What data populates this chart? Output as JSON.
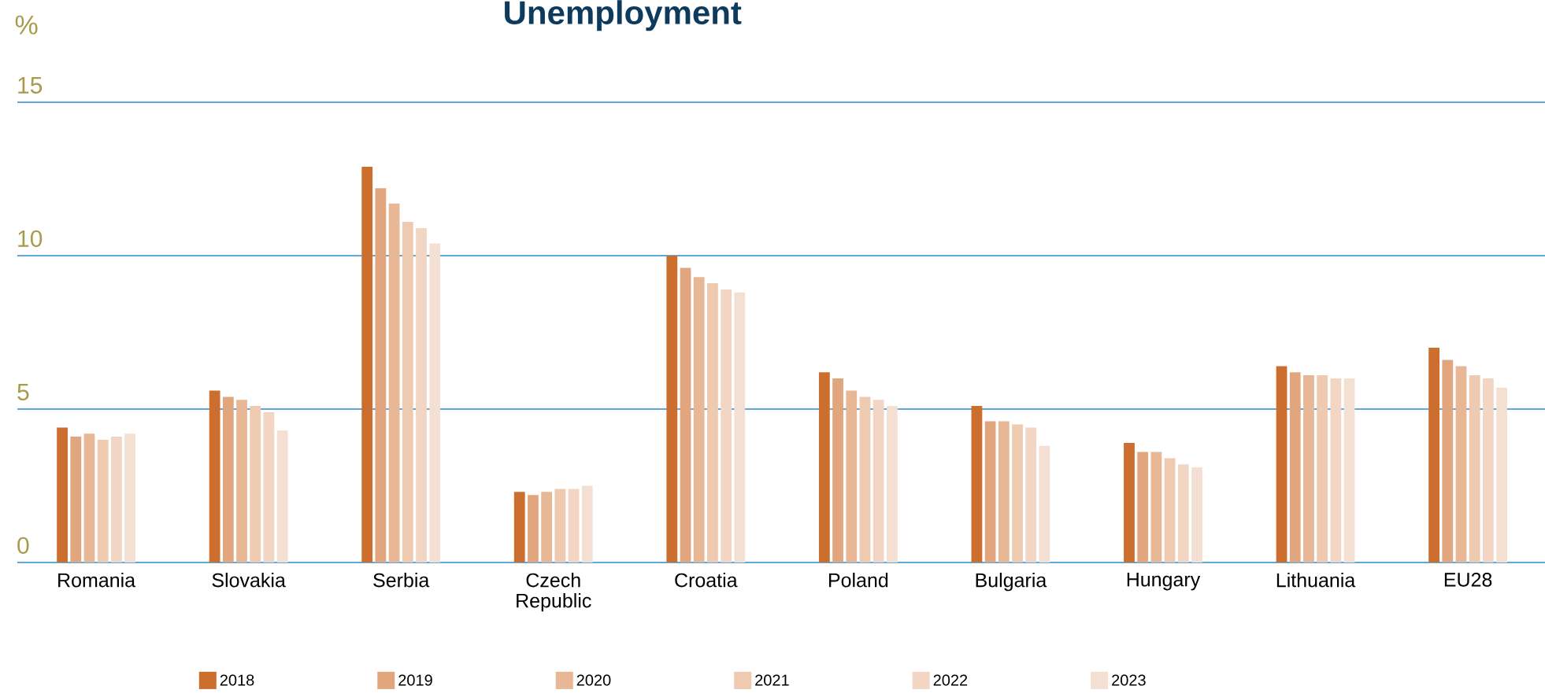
{
  "chart_data": {
    "type": "bar",
    "title": "Unemployment",
    "ylabel": "%",
    "categories": [
      "Romania",
      "Slovakia",
      "Serbia",
      "Czech Republic",
      "Croatia",
      "Poland",
      "Bulgaria",
      "Hungary",
      "Lithuania",
      "EU28"
    ],
    "series": [
      {
        "name": "2018",
        "color": "#cc6e2e",
        "values": [
          4.4,
          5.6,
          12.9,
          2.3,
          10.0,
          6.2,
          5.1,
          3.9,
          6.4,
          7.0
        ]
      },
      {
        "name": "2019",
        "color": "#e2a67f",
        "values": [
          4.1,
          5.4,
          12.2,
          2.2,
          9.6,
          6.0,
          4.6,
          3.6,
          6.2,
          6.6
        ]
      },
      {
        "name": "2020",
        "color": "#e7b796",
        "values": [
          4.2,
          5.3,
          11.7,
          2.3,
          9.3,
          5.6,
          4.6,
          3.6,
          6.1,
          6.4
        ]
      },
      {
        "name": "2021",
        "color": "#eecab0",
        "values": [
          4.0,
          5.1,
          11.1,
          2.4,
          9.1,
          5.4,
          4.5,
          3.4,
          6.1,
          6.1
        ]
      },
      {
        "name": "2022",
        "color": "#f2d6c3",
        "values": [
          4.1,
          4.9,
          10.9,
          2.4,
          8.9,
          5.3,
          4.4,
          3.2,
          6.0,
          6.0
        ]
      },
      {
        "name": "2023",
        "color": "#f4e0d2",
        "values": [
          4.2,
          4.3,
          10.4,
          2.5,
          8.8,
          5.1,
          3.8,
          3.1,
          6.0,
          5.7
        ]
      }
    ],
    "ylim": [
      0,
      15
    ],
    "yticks": [
      0,
      5,
      10,
      15
    ],
    "grid": "y",
    "legend": "bottom"
  }
}
